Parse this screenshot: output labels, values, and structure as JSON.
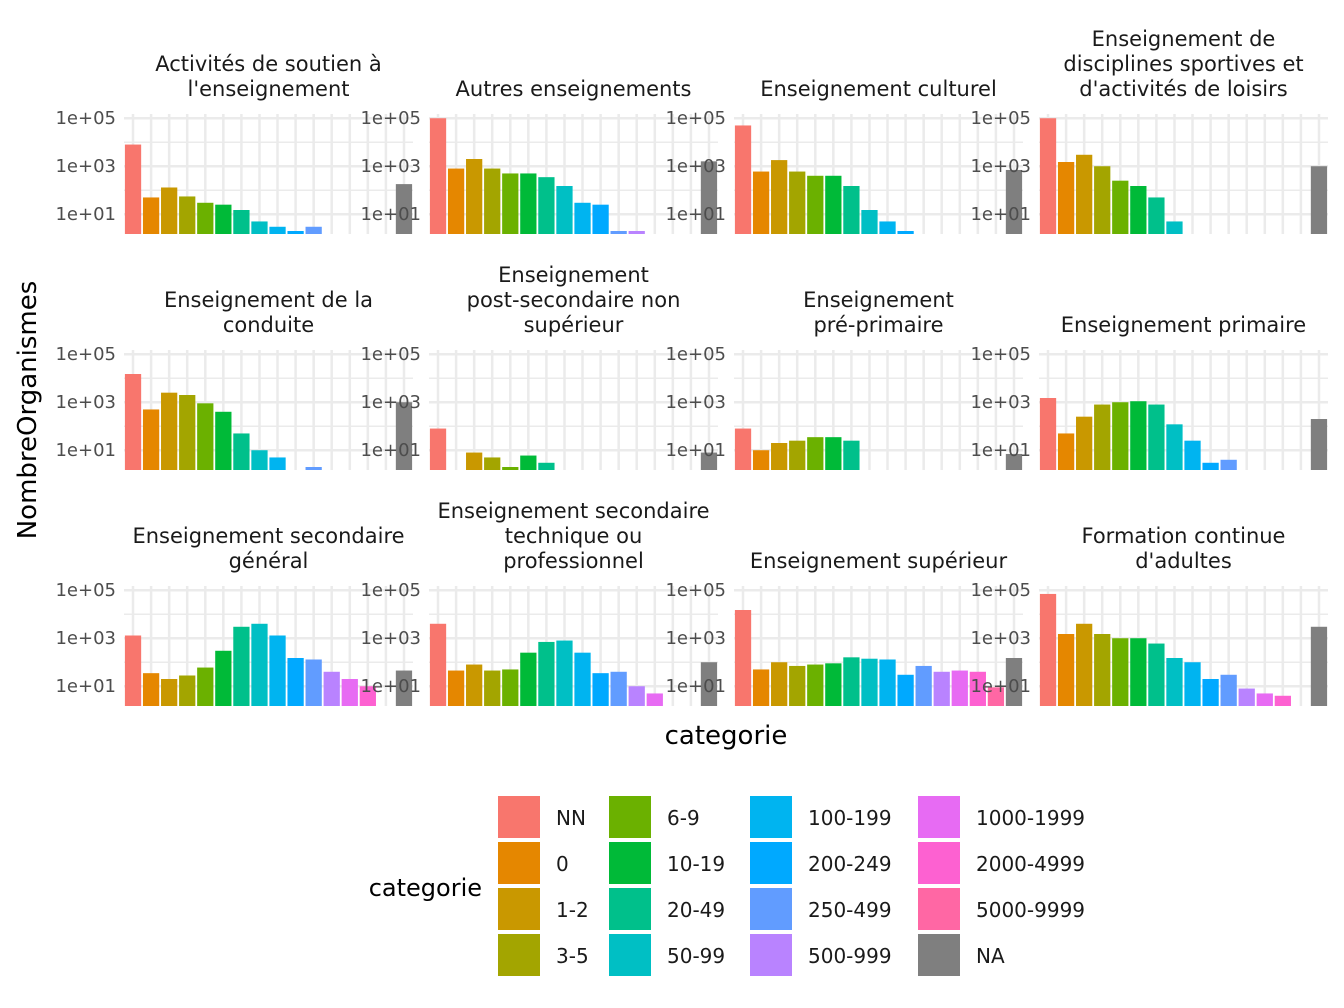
{
  "chart_data": {
    "type": "bar",
    "facets": true,
    "y_scale": "log10",
    "xlabel": "categorie",
    "ylabel": "NombreOrganismes",
    "y_ticks": [
      "1e+01",
      "1e+03",
      "1e+05"
    ],
    "y_tick_values": [
      10,
      1000,
      100000
    ],
    "ylim": [
      1.5,
      150000
    ],
    "grid": true,
    "categories": [
      "NN",
      "0",
      "1-2",
      "3-5",
      "6-9",
      "10-19",
      "20-49",
      "50-99",
      "100-199",
      "200-249",
      "250-499",
      "500-999",
      "1000-1999",
      "2000-4999",
      "5000-9999",
      "NA"
    ],
    "colors": [
      "#F8766D",
      "#E58700",
      "#C99800",
      "#A3A500",
      "#6BB100",
      "#00BA38",
      "#00C08B",
      "#00BFC4",
      "#00B4F0",
      "#00A9FF",
      "#619CFF",
      "#B983FF",
      "#E76BF3",
      "#FD61D1",
      "#FF67A4",
      "#7F7F7F"
    ],
    "panels": [
      {
        "title": [
          "Activités de soutien à",
          "l'enseignement"
        ],
        "values": [
          8000,
          50,
          130,
          55,
          30,
          25,
          15,
          5,
          3,
          2,
          3,
          null,
          null,
          null,
          null,
          180
        ]
      },
      {
        "title": [
          "Autres enseignements"
        ],
        "values": [
          100000,
          800,
          2000,
          800,
          500,
          500,
          350,
          150,
          30,
          25,
          2,
          2,
          null,
          null,
          null,
          1600
        ]
      },
      {
        "title": [
          "Enseignement culturel"
        ],
        "values": [
          50000,
          600,
          1800,
          600,
          400,
          400,
          150,
          15,
          5,
          2,
          null,
          null,
          null,
          null,
          null,
          700
        ]
      },
      {
        "title": [
          "Enseignement de",
          "disciplines sportives et",
          "d'activités de loisirs"
        ],
        "values": [
          100000,
          1500,
          3000,
          1000,
          250,
          150,
          50,
          5,
          null,
          null,
          null,
          null,
          null,
          null,
          null,
          1000
        ]
      },
      {
        "title": [
          "Enseignement de la",
          "conduite"
        ],
        "values": [
          15000,
          500,
          2500,
          2000,
          900,
          400,
          50,
          10,
          5,
          null,
          2,
          null,
          null,
          null,
          null,
          1000
        ]
      },
      {
        "title": [
          "Enseignement",
          "post-secondaire non",
          "supérieur"
        ],
        "values": [
          80,
          null,
          8,
          5,
          2,
          6,
          3,
          null,
          null,
          null,
          null,
          null,
          null,
          null,
          null,
          8
        ]
      },
      {
        "title": [
          "Enseignement",
          "pré-primaire"
        ],
        "values": [
          80,
          10,
          20,
          25,
          35,
          35,
          25,
          null,
          null,
          null,
          null,
          null,
          null,
          null,
          null,
          7
        ]
      },
      {
        "title": [
          "Enseignement primaire"
        ],
        "values": [
          1500,
          50,
          250,
          800,
          1000,
          1100,
          800,
          120,
          25,
          3,
          4,
          null,
          null,
          null,
          null,
          200
        ]
      },
      {
        "title": [
          "Enseignement secondaire",
          "général"
        ],
        "values": [
          1300,
          35,
          20,
          28,
          60,
          300,
          3000,
          4000,
          1300,
          150,
          130,
          40,
          20,
          10,
          null,
          45
        ]
      },
      {
        "title": [
          "Enseignement secondaire",
          "technique ou",
          "professionnel"
        ],
        "values": [
          4000,
          45,
          80,
          45,
          50,
          250,
          700,
          800,
          250,
          35,
          40,
          10,
          5,
          null,
          null,
          100
        ]
      },
      {
        "title": [
          "Enseignement supérieur"
        ],
        "values": [
          15000,
          50,
          100,
          70,
          80,
          90,
          160,
          140,
          130,
          30,
          70,
          40,
          45,
          40,
          9,
          150
        ]
      },
      {
        "title": [
          "Formation continue",
          "d'adultes"
        ],
        "values": [
          70000,
          1500,
          4000,
          1500,
          1000,
          1000,
          600,
          150,
          100,
          20,
          30,
          8,
          5,
          4,
          null,
          3000
        ]
      }
    ],
    "legend": {
      "title": "categorie",
      "position": "bottom",
      "columns": [
        [
          "NN",
          "0",
          "1-2",
          "3-5"
        ],
        [
          "6-9",
          "10-19",
          "20-49",
          "50-99"
        ],
        [
          "100-199",
          "200-249",
          "250-499",
          "500-999"
        ],
        [
          "1000-1999",
          "2000-4999",
          "5000-9999",
          "NA"
        ]
      ]
    }
  }
}
